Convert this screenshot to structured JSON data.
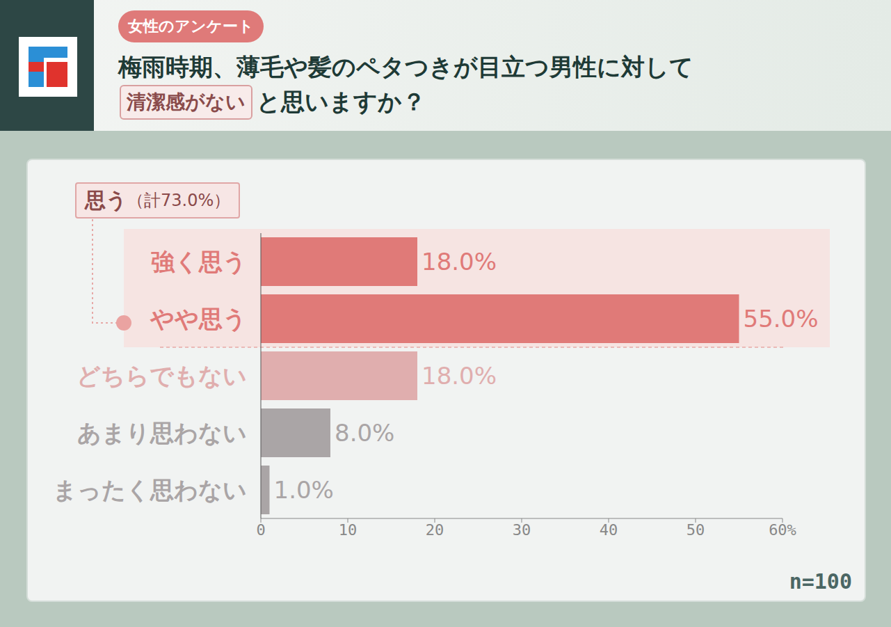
{
  "chart_data": {
    "type": "bar",
    "orientation": "horizontal",
    "subtitle": "女性のアンケート",
    "title": [
      "梅雨時期、薄毛や髪のペタつきが目立つ男性に対して",
      "清潔感がない",
      "と思いますか？"
    ],
    "categories": [
      "強く思う",
      "やや思う",
      "どちらでもない",
      "あまり思わない",
      "まったく思わない"
    ],
    "values": [
      18,
      55,
      18,
      8,
      1
    ],
    "value_labels": [
      "18.0%",
      "55.0%",
      "18.0%",
      "8.0%",
      "1.0%"
    ],
    "colors": [
      "#e07a78",
      "#e07a78",
      "#e0aeae",
      "#aaa5a6",
      "#aaa5a6"
    ],
    "xlim": [
      0,
      60
    ],
    "xticks": [
      0,
      10,
      20,
      30,
      40,
      50,
      {
        "value": 60,
        "label": "60%"
      }
    ],
    "grid": false,
    "data_labels": true,
    "annotations": [
      {
        "text": "思う",
        "detail": "（計73.0%）",
        "categories": [
          "強く思う",
          "やや思う"
        ]
      },
      {
        "text": "n=100"
      }
    ]
  }
}
